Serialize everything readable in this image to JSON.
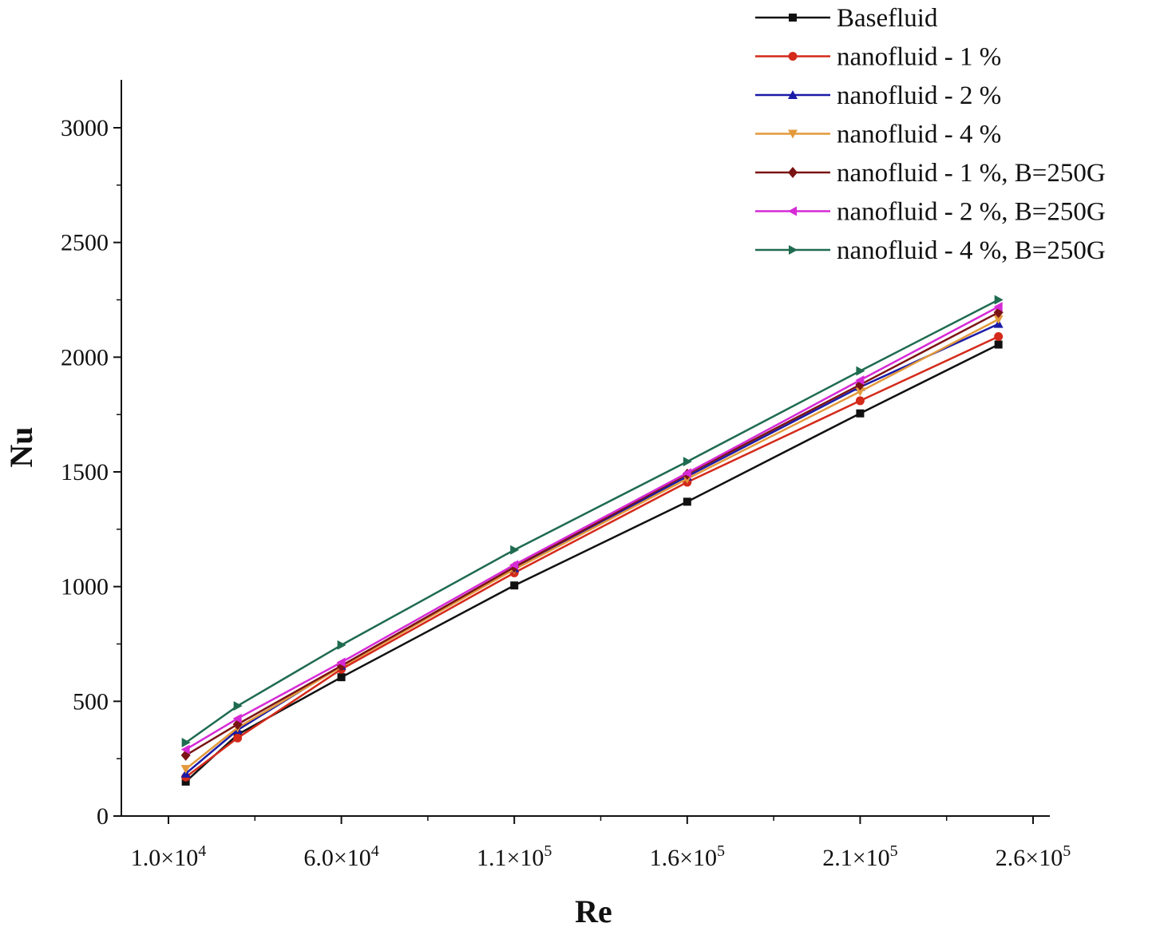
{
  "chart_data": {
    "type": "line",
    "title": "",
    "xlabel": "Re",
    "ylabel": "Nu",
    "xlim": [
      0,
      260000
    ],
    "ylim": [
      0,
      3200
    ],
    "xticks": [
      {
        "value": 10000,
        "mantissa": "1.0",
        "exp": "4"
      },
      {
        "value": 60000,
        "mantissa": "6.0",
        "exp": "4"
      },
      {
        "value": 110000,
        "mantissa": "1.1",
        "exp": "5"
      },
      {
        "value": 160000,
        "mantissa": "1.6",
        "exp": "5"
      },
      {
        "value": 210000,
        "mantissa": "2.1",
        "exp": "5"
      },
      {
        "value": 260000,
        "mantissa": "2.6",
        "exp": "5"
      }
    ],
    "yticks": [
      0,
      500,
      1000,
      1500,
      2000,
      2500,
      3000
    ],
    "legend_position": "top-right",
    "x": [
      15000,
      30000,
      60000,
      110000,
      160000,
      210000,
      250000
    ],
    "series": [
      {
        "name": "Basefluid",
        "color": "#111111",
        "marker": "square",
        "values": [
          150,
          355,
          605,
          1005,
          1370,
          1755,
          2055
        ]
      },
      {
        "name": "nanofluid - 1 %",
        "color": "#d42a1a",
        "marker": "circle",
        "values": [
          170,
          340,
          640,
          1060,
          1455,
          1810,
          2090
        ]
      },
      {
        "name": "nanofluid - 2 %",
        "color": "#1a1aa8",
        "marker": "triangle-up",
        "values": [
          185,
          375,
          655,
          1080,
          1480,
          1870,
          2145
        ]
      },
      {
        "name": "nanofluid - 4 %",
        "color": "#e39a3a",
        "marker": "triangle-down",
        "values": [
          205,
          385,
          650,
          1075,
          1470,
          1850,
          2165
        ]
      },
      {
        "name": "nanofluid - 1 %, B=250G",
        "color": "#7a1414",
        "marker": "diamond",
        "values": [
          265,
          400,
          655,
          1085,
          1490,
          1880,
          2195
        ]
      },
      {
        "name": "nanofluid - 2 %, B=250G",
        "color": "#d62ad6",
        "marker": "triangle-left",
        "values": [
          290,
          425,
          670,
          1095,
          1495,
          1900,
          2220
        ]
      },
      {
        "name": "nanofluid - 4 %, B=250G",
        "color": "#1f6b50",
        "marker": "triangle-right",
        "values": [
          320,
          480,
          745,
          1160,
          1545,
          1940,
          2250
        ]
      }
    ]
  }
}
